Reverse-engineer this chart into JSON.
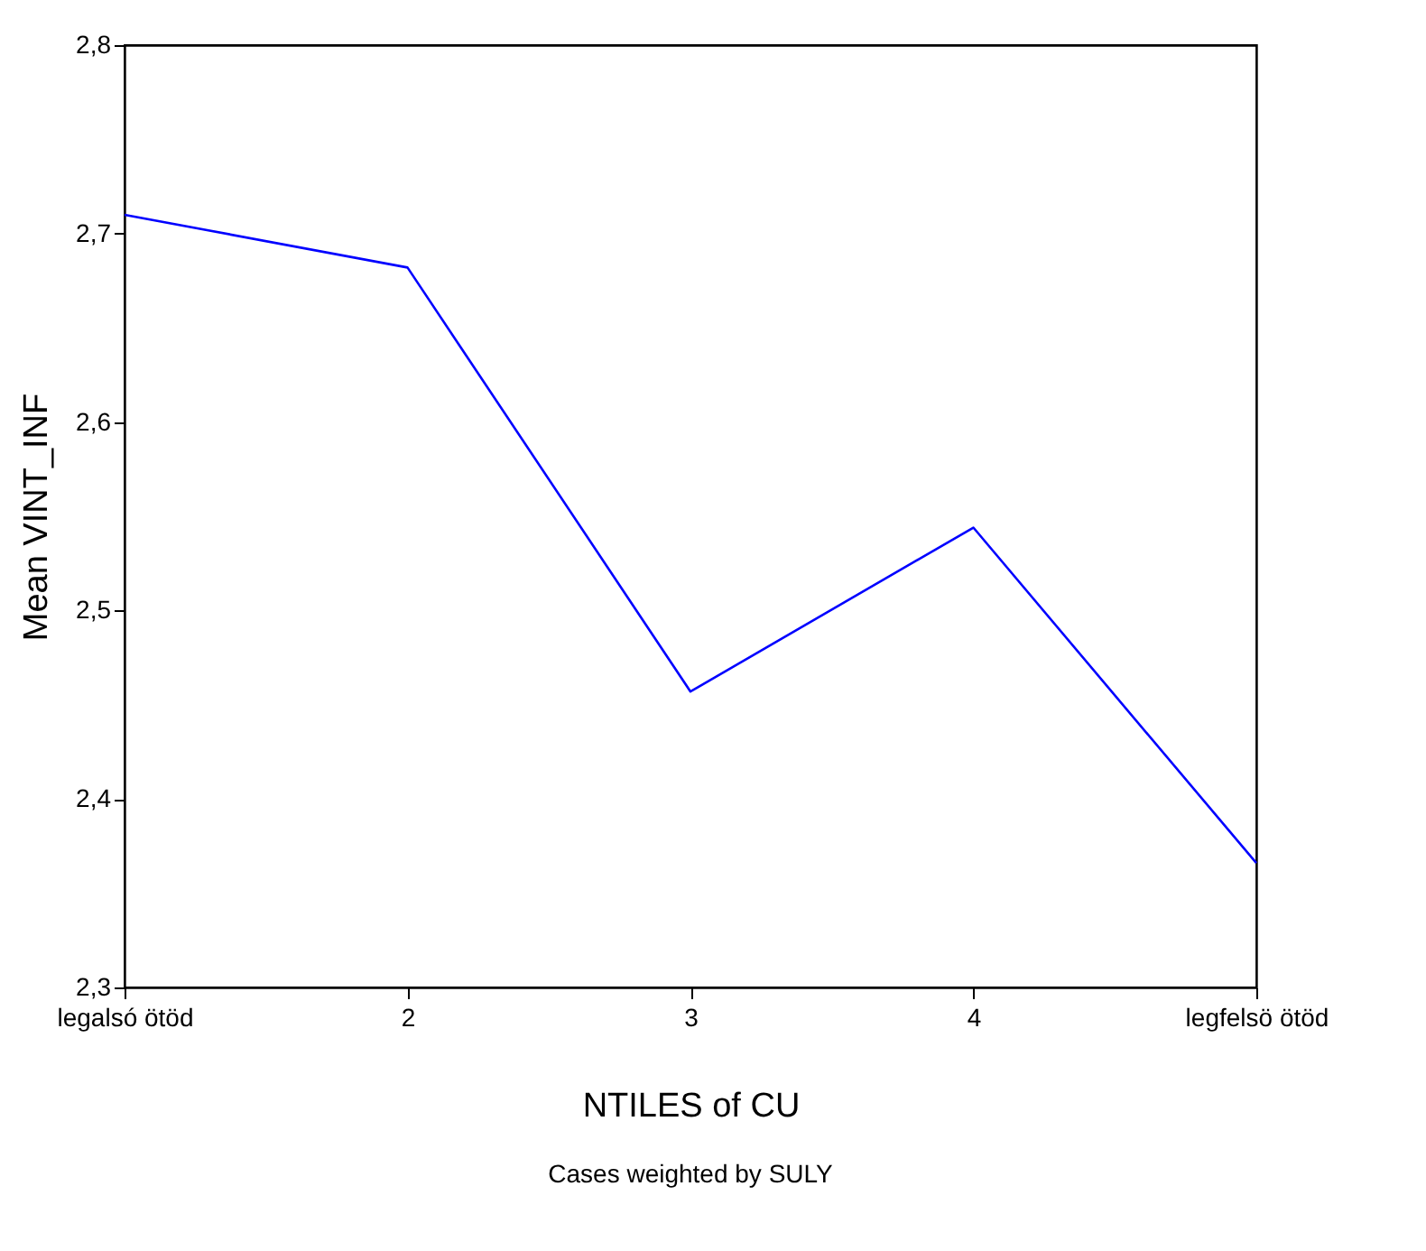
{
  "chart_data": {
    "type": "line",
    "xlabel": "NTILES of CU",
    "ylabel": "Mean VINT_INF",
    "categories": [
      "legalsó ötöd",
      "2",
      "3",
      "4",
      "legfelsö ötöd"
    ],
    "series": [
      {
        "color": "#0000ff",
        "values": [
          2.71,
          2.682,
          2.457,
          2.544,
          2.366
        ]
      }
    ],
    "ylim": [
      2.3,
      2.8
    ],
    "yticks": [
      {
        "value": 2.3,
        "label": "2,3"
      },
      {
        "value": 2.4,
        "label": "2,4"
      },
      {
        "value": 2.5,
        "label": "2,5"
      },
      {
        "value": 2.6,
        "label": "2,6"
      },
      {
        "value": 2.7,
        "label": "2,7"
      },
      {
        "value": 2.8,
        "label": "2,8"
      }
    ],
    "annotations": [
      "Cases weighted by SULY"
    ]
  }
}
